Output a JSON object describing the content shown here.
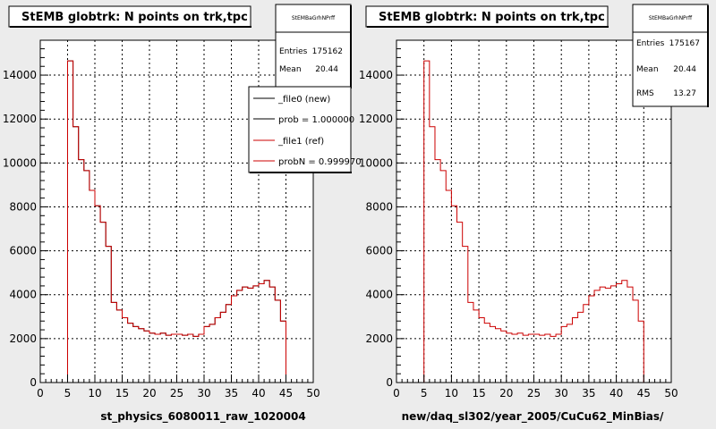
{
  "chart_data": [
    {
      "type": "histogram",
      "title": "StEMB globtrk: N points on trk,tpc",
      "xlabel": "st_physics_6080011_raw_1020004",
      "ylabel": "",
      "xlim": [
        0,
        50
      ],
      "ylim": [
        0,
        15000
      ],
      "xticks": [
        "0",
        "5",
        "10",
        "15",
        "20",
        "25",
        "30",
        "35",
        "40",
        "45",
        "50"
      ],
      "yticks": [
        "0",
        "2000",
        "4000",
        "6000",
        "8000",
        "10000",
        "12000",
        "14000"
      ],
      "grid": true,
      "bin_edges": [
        5,
        6,
        7,
        8,
        9,
        10,
        11,
        12,
        13,
        14,
        15,
        16,
        17,
        18,
        19,
        20,
        21,
        22,
        23,
        24,
        25,
        26,
        27,
        28,
        29,
        30,
        31,
        32,
        33,
        34,
        35,
        36,
        37,
        38,
        39,
        40,
        41,
        42,
        43,
        44,
        45
      ],
      "series": [
        {
          "name": "_file0 (new)",
          "color": "#000000",
          "values": [
            14650,
            11650,
            10150,
            9650,
            8750,
            8050,
            7300,
            6200,
            3650,
            3300,
            2950,
            2700,
            2550,
            2450,
            2350,
            2250,
            2200,
            2250,
            2150,
            2200,
            2200,
            2150,
            2200,
            2100,
            2200,
            2550,
            2650,
            2950,
            3200,
            3550,
            3950,
            4200,
            4350,
            4300,
            4400,
            4500,
            4650,
            4350,
            3750,
            2800
          ]
        },
        {
          "name": "_file1 (ref)",
          "color": "#cc0000",
          "values": [
            14650,
            11650,
            10150,
            9650,
            8750,
            8050,
            7300,
            6200,
            3650,
            3300,
            2950,
            2700,
            2550,
            2450,
            2350,
            2250,
            2200,
            2250,
            2150,
            2200,
            2200,
            2150,
            2200,
            2100,
            2200,
            2550,
            2650,
            2950,
            3200,
            3550,
            3950,
            4200,
            4350,
            4300,
            4400,
            4500,
            4650,
            4350,
            3750,
            2800
          ]
        }
      ],
      "stats": {
        "header": "StEMBaGrhNPrff",
        "entries_label": "Entries",
        "entries": "175162",
        "mean_label": "Mean",
        "mean": "20.44"
      },
      "legend": [
        "_file0 (new)",
        "prob = 1.000000",
        "_file1 (ref)",
        "probN = 0.999970"
      ],
      "legend_placement": "top-right"
    },
    {
      "type": "histogram",
      "title": "StEMB globtrk: N points on trk,tpc",
      "xlabel": "new/daq_sl302/year_2005/CuCu62_MinBias/",
      "ylabel": "",
      "xlim": [
        0,
        50
      ],
      "ylim": [
        0,
        15000
      ],
      "xticks": [
        "0",
        "5",
        "10",
        "15",
        "20",
        "25",
        "30",
        "35",
        "40",
        "45",
        "50"
      ],
      "yticks": [
        "0",
        "2000",
        "4000",
        "6000",
        "8000",
        "10000",
        "12000",
        "14000"
      ],
      "grid": true,
      "bin_edges": [
        5,
        6,
        7,
        8,
        9,
        10,
        11,
        12,
        13,
        14,
        15,
        16,
        17,
        18,
        19,
        20,
        21,
        22,
        23,
        24,
        25,
        26,
        27,
        28,
        29,
        30,
        31,
        32,
        33,
        34,
        35,
        36,
        37,
        38,
        39,
        40,
        41,
        42,
        43,
        44,
        45
      ],
      "series": [
        {
          "name": "",
          "color": "#cc0000",
          "values": [
            14650,
            11650,
            10150,
            9650,
            8750,
            8050,
            7300,
            6200,
            3650,
            3300,
            2950,
            2700,
            2550,
            2450,
            2350,
            2250,
            2200,
            2250,
            2150,
            2200,
            2200,
            2150,
            2200,
            2100,
            2200,
            2550,
            2650,
            2950,
            3200,
            3550,
            3950,
            4200,
            4350,
            4300,
            4400,
            4500,
            4650,
            4350,
            3750,
            2800
          ]
        }
      ],
      "stats": {
        "header": "StEMBaGrhNPrff",
        "entries_label": "Entries",
        "entries": "175167",
        "mean_label": "Mean",
        "mean": "20.44",
        "rms_label": "RMS",
        "rms": "13.27"
      }
    }
  ]
}
